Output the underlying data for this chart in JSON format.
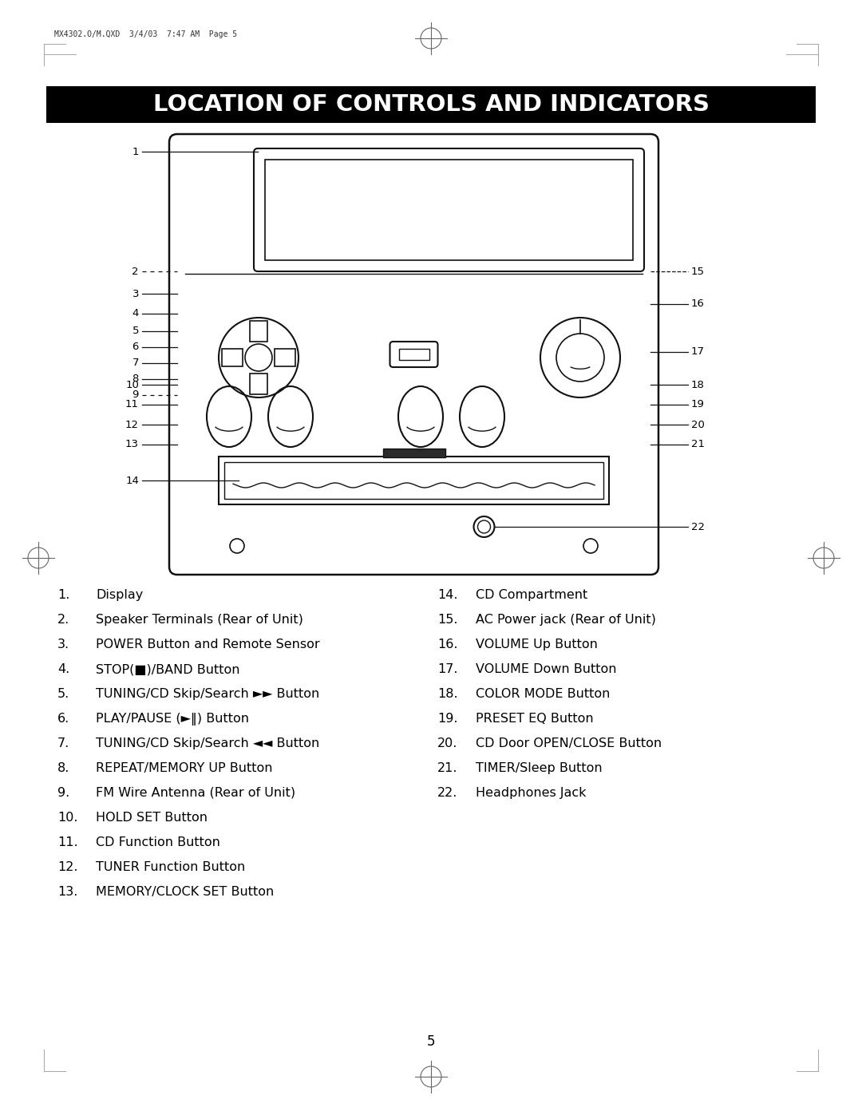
{
  "title": "LOCATION OF CONTROLS AND INDICATORS",
  "header_text": "MX4302.O/M.QXD  3/4/03  7:47 AM  Page 5",
  "page_number": "5",
  "bg_color": "#ffffff",
  "title_bg": "#000000",
  "title_fg": "#ffffff",
  "left_items_plain": [
    [
      "1.",
      "Display"
    ],
    [
      "2.",
      "Speaker Terminals (Rear of Unit)"
    ],
    [
      "3.",
      "POWER Button and Remote Sensor"
    ],
    [
      "4.",
      "STOP(■)/BAND Button"
    ],
    [
      "5.",
      "TUNING/CD Skip/Search ►► Button"
    ],
    [
      "6.",
      "PLAY/PAUSE (►‖) Button"
    ],
    [
      "7.",
      "TUNING/CD Skip/Search ◄◄ Button"
    ],
    [
      "8.",
      "REPEAT/MEMORY UP Button"
    ],
    [
      "9.",
      "FM Wire Antenna (Rear of Unit)"
    ],
    [
      "10.",
      "HOLD SET Button"
    ],
    [
      "11.",
      "CD Function Button"
    ],
    [
      "12.",
      "TUNER Function Button"
    ],
    [
      "13.",
      "MEMORY/CLOCK SET Button"
    ]
  ],
  "right_items_plain": [
    [
      "14.",
      "CD Compartment"
    ],
    [
      "15.",
      "AC Power jack (Rear of Unit)"
    ],
    [
      "16.",
      "VOLUME Up Button"
    ],
    [
      "17.",
      "VOLUME Down Button"
    ],
    [
      "18.",
      "COLOR MODE Button"
    ],
    [
      "19.",
      "PRESET EQ Button"
    ],
    [
      "20.",
      "CD Door OPEN/CLOSE Button"
    ],
    [
      "21.",
      "TIMER/Sleep Button"
    ],
    [
      "22.",
      "Headphones Jack"
    ]
  ]
}
